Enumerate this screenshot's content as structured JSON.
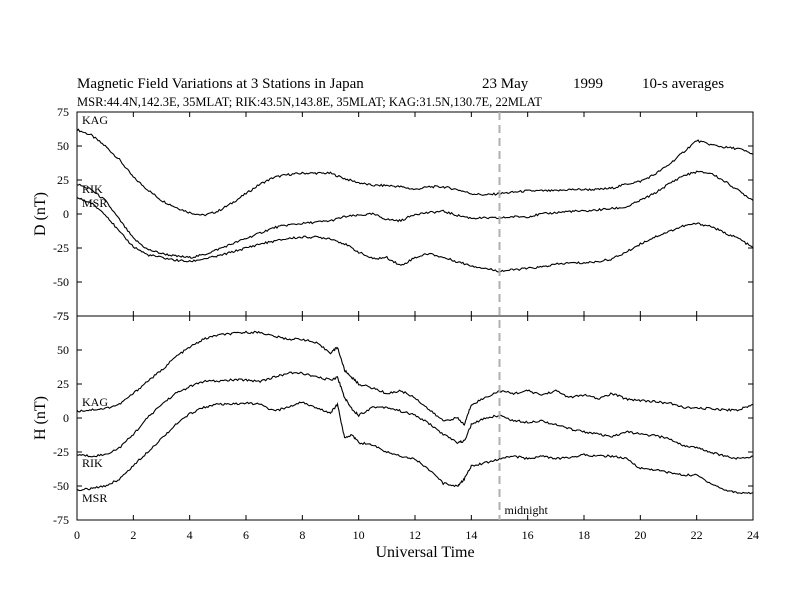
{
  "header": {
    "title_main": "Magnetic Field Variations at 3 Stations in Japan",
    "title_date": "23  May",
    "title_year": "1999",
    "title_avg": "10-s averages",
    "subtitle": "MSR:44.4N,142.3E, 35MLAT;   RIK:43.5N,143.8E, 35MLAT;   KAG:31.5N,130.7E, 22MLAT"
  },
  "colors": {
    "axis": "#000000",
    "line": "#000000",
    "midnight_line": "#b0b0b0"
  },
  "chart_data": {
    "type": "line",
    "xlabel": "Universal Time",
    "xlim": [
      0,
      24
    ],
    "x_ticks": [
      0,
      2,
      4,
      6,
      8,
      10,
      12,
      14,
      16,
      18,
      20,
      22,
      24
    ],
    "x_tick_labels": [
      "0",
      "2",
      "4",
      "6",
      "8",
      "10",
      "12",
      "14",
      "16",
      "18",
      "20",
      "22",
      "24"
    ],
    "annotations": [
      {
        "x": 15,
        "label": "midnight",
        "style": "dashed vertical line"
      }
    ],
    "panels": [
      {
        "id": "D",
        "ylabel": "D (nT)",
        "ylim": [
          -75,
          75
        ],
        "y_ticks": [
          75,
          50,
          25,
          0,
          -25,
          -50,
          -75
        ],
        "y_tick_labels": [
          "75",
          "50",
          "25",
          "0",
          "-25",
          "-50",
          "-75"
        ],
        "series": [
          {
            "name": "KAG",
            "x": [
              0,
              0.5,
              1,
              1.5,
              2,
              2.5,
              3,
              3.5,
              4,
              4.5,
              5,
              5.5,
              6,
              6.5,
              7,
              7.5,
              8,
              8.5,
              9,
              9.5,
              10,
              10.5,
              11,
              11.5,
              12,
              12.5,
              13,
              13.5,
              14,
              14.5,
              15,
              15.5,
              16,
              16.5,
              17,
              17.5,
              18,
              18.5,
              19,
              19.5,
              20,
              20.5,
              21,
              21.5,
              22,
              22.5,
              23,
              23.5,
              24
            ],
            "values": [
              62,
              58,
              50,
              40,
              27,
              18,
              10,
              5,
              1,
              -1,
              2,
              8,
              15,
              22,
              27,
              29,
              30,
              30,
              30,
              26,
              23,
              21,
              21,
              20,
              18,
              20,
              20,
              18,
              15,
              14,
              15,
              16,
              17,
              17,
              17,
              18,
              18,
              18,
              19,
              22,
              24,
              29,
              36,
              45,
              54,
              51,
              49,
              48,
              44
            ]
          },
          {
            "name": "RIK",
            "x": [
              0,
              0.5,
              1,
              1.5,
              2,
              2.5,
              3,
              3.5,
              4,
              4.5,
              5,
              5.5,
              6,
              6.5,
              7,
              7.5,
              8,
              8.5,
              9,
              9.5,
              10,
              10.5,
              11,
              11.5,
              12,
              12.5,
              13,
              13.5,
              14,
              14.5,
              15,
              15.5,
              16,
              16.5,
              17,
              17.5,
              18,
              18.5,
              19,
              19.5,
              20,
              20.5,
              21,
              21.5,
              22,
              22.5,
              23,
              23.5,
              24
            ],
            "values": [
              22,
              18,
              10,
              -4,
              -18,
              -26,
              -29,
              -31,
              -32,
              -30,
              -26,
              -22,
              -18,
              -14,
              -10,
              -8,
              -7,
              -6,
              -5,
              -2,
              -1,
              0,
              -4,
              -5,
              0,
              1,
              2,
              -1,
              -3,
              -3,
              -3,
              -2,
              -2,
              0,
              1,
              2,
              2,
              3,
              4,
              5,
              10,
              15,
              22,
              28,
              31,
              30,
              24,
              17,
              10
            ]
          },
          {
            "name": "MSR",
            "x": [
              0,
              0.5,
              1,
              1.5,
              2,
              2.5,
              3,
              3.5,
              4,
              4.5,
              5,
              5.5,
              6,
              6.5,
              7,
              7.5,
              8,
              8.5,
              9,
              9.5,
              10,
              10.5,
              11,
              11.5,
              12,
              12.5,
              13,
              13.5,
              14,
              14.5,
              15,
              15.5,
              16,
              16.5,
              17,
              17.5,
              18,
              18.5,
              19,
              19.5,
              20,
              20.5,
              21,
              21.5,
              22,
              22.5,
              23,
              23.5,
              24
            ],
            "values": [
              12,
              8,
              0,
              -13,
              -24,
              -30,
              -32,
              -34,
              -35,
              -33,
              -31,
              -28,
              -25,
              -22,
              -20,
              -18,
              -17,
              -17,
              -18,
              -22,
              -28,
              -33,
              -32,
              -38,
              -32,
              -29,
              -32,
              -35,
              -38,
              -40,
              -42,
              -41,
              -40,
              -39,
              -37,
              -36,
              -36,
              -35,
              -33,
              -28,
              -22,
              -17,
              -13,
              -9,
              -7,
              -9,
              -14,
              -18,
              -25
            ]
          }
        ]
      },
      {
        "id": "H",
        "ylabel": "H (nT)",
        "ylim": [
          -75,
          75
        ],
        "y_ticks": [
          75,
          50,
          25,
          0,
          -25,
          -50,
          -75
        ],
        "y_tick_labels": [
          "75",
          "50",
          "25",
          "0",
          "-25",
          "-50",
          "-75"
        ],
        "series": [
          {
            "name": "KAG",
            "x": [
              0,
              0.5,
              1,
              1.5,
              2,
              2.5,
              3,
              3.5,
              4,
              4.5,
              5,
              5.5,
              6,
              6.5,
              7,
              7.5,
              8,
              8.5,
              9,
              9.25,
              9.5,
              9.75,
              10,
              10.5,
              11,
              11.5,
              12,
              12.5,
              13,
              13.5,
              13.75,
              14,
              14.5,
              15,
              15.5,
              16,
              16.5,
              17,
              17.5,
              18,
              18.5,
              19,
              19.5,
              20,
              20.5,
              21,
              21.5,
              22,
              22.5,
              23,
              23.5,
              24
            ],
            "values": [
              5,
              6,
              7,
              10,
              18,
              27,
              35,
              45,
              52,
              58,
              61,
              62,
              63,
              63,
              60,
              58,
              58,
              55,
              48,
              52,
              35,
              30,
              25,
              22,
              18,
              20,
              15,
              6,
              -2,
              0,
              -5,
              10,
              15,
              20,
              18,
              20,
              17,
              20,
              15,
              17,
              14,
              18,
              14,
              13,
              12,
              11,
              8,
              7,
              7,
              6,
              6,
              10
            ]
          },
          {
            "name": "RIK",
            "x": [
              0,
              0.5,
              1,
              1.5,
              2,
              2.5,
              3,
              3.5,
              4,
              4.5,
              5,
              5.5,
              6,
              6.5,
              7,
              7.5,
              8,
              8.5,
              9,
              9.25,
              9.5,
              9.75,
              10,
              10.5,
              11,
              11.5,
              12,
              12.5,
              13,
              13.5,
              13.75,
              14,
              14.5,
              15,
              15.5,
              16,
              16.5,
              17,
              17.5,
              18,
              18.5,
              19,
              19.5,
              20,
              20.5,
              21,
              21.5,
              22,
              22.5,
              23,
              23.5,
              24
            ],
            "values": [
              -27,
              -28,
              -27,
              -22,
              -12,
              0,
              10,
              18,
              23,
              27,
              27,
              28,
              28,
              27,
              30,
              33,
              33,
              30,
              28,
              30,
              15,
              7,
              2,
              8,
              8,
              5,
              2,
              -4,
              -12,
              -18,
              -17,
              -5,
              0,
              2,
              -2,
              -3,
              -2,
              -5,
              -8,
              -10,
              -12,
              -14,
              -10,
              -12,
              -13,
              -15,
              -20,
              -22,
              -25,
              -28,
              -30,
              -28
            ]
          },
          {
            "name": "MSR",
            "x": [
              0,
              0.5,
              1,
              1.5,
              2,
              2.5,
              3,
              3.5,
              4,
              4.5,
              5,
              5.5,
              6,
              6.5,
              7,
              7.5,
              8,
              8.5,
              9,
              9.25,
              9.5,
              9.75,
              10,
              10.5,
              11,
              11.5,
              12,
              12.5,
              13,
              13.5,
              13.75,
              14,
              14.5,
              15,
              15.5,
              16,
              16.5,
              17,
              17.5,
              18,
              18.5,
              19,
              19.5,
              20,
              20.5,
              21,
              21.5,
              22,
              22.5,
              23,
              23.5,
              24
            ],
            "values": [
              -53,
              -52,
              -50,
              -45,
              -35,
              -25,
              -15,
              -5,
              3,
              8,
              10,
              10,
              11,
              10,
              5,
              8,
              12,
              7,
              4,
              10,
              -15,
              -12,
              -18,
              -20,
              -25,
              -28,
              -30,
              -38,
              -48,
              -50,
              -45,
              -35,
              -33,
              -30,
              -28,
              -30,
              -28,
              -30,
              -29,
              -27,
              -28,
              -28,
              -30,
              -37,
              -38,
              -40,
              -42,
              -42,
              -48,
              -53,
              -55,
              -55
            ]
          }
        ]
      }
    ]
  }
}
